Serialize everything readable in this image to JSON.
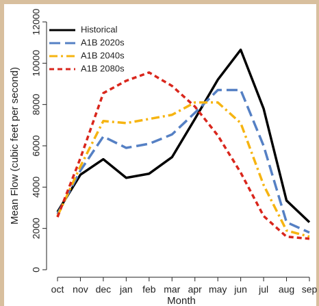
{
  "chart_data": {
    "type": "line",
    "xlabel": "Month",
    "ylabel": "Mean Flow (cubic feet per second)",
    "categories": [
      "oct",
      "nov",
      "dec",
      "jan",
      "feb",
      "mar",
      "apr",
      "may",
      "jun",
      "jul",
      "aug",
      "sep"
    ],
    "series": [
      {
        "name": "Historical",
        "color": "#000000",
        "dash": "solid",
        "values": [
          2800,
          4600,
          5350,
          4450,
          4650,
          5450,
          7300,
          9200,
          10650,
          7800,
          3350,
          2300
        ]
      },
      {
        "name": "A1B 2020s",
        "color": "#5580c4",
        "dash": "longdash",
        "values": [
          2700,
          4800,
          6450,
          5900,
          6100,
          6550,
          7600,
          8700,
          8700,
          6000,
          2300,
          1800
        ]
      },
      {
        "name": "A1B 2040s",
        "color": "#f6b411",
        "dash": "dotdash",
        "values": [
          2600,
          5000,
          7200,
          7100,
          7300,
          7500,
          8100,
          8100,
          7100,
          4100,
          1900,
          1600
        ]
      },
      {
        "name": "A1B 2080s",
        "color": "#d9261c",
        "dash": "dashed",
        "values": [
          2550,
          5400,
          8550,
          9150,
          9550,
          8900,
          7900,
          6500,
          4700,
          2600,
          1600,
          1500
        ]
      }
    ],
    "ylim": [
      0,
      12000
    ],
    "yticks": [
      0,
      2000,
      4000,
      6000,
      8000,
      10000,
      12000
    ],
    "grid": false,
    "legend": "top-left"
  }
}
